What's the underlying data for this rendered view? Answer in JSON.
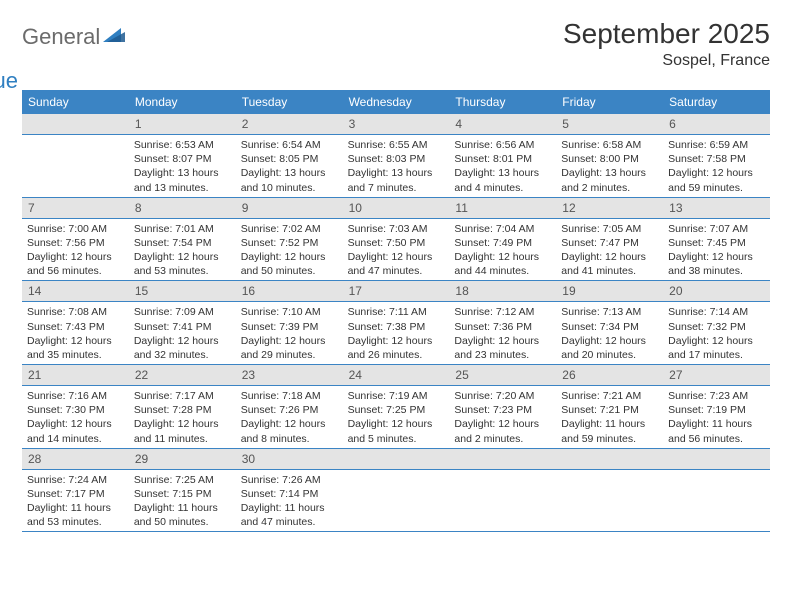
{
  "brand": {
    "part1": "General",
    "part2": "Blue",
    "icon_color": "#2f7fc1"
  },
  "title": "September 2025",
  "location": "Sospel, France",
  "colors": {
    "header_bg": "#3b84c4",
    "header_text": "#ffffff",
    "daynum_bg": "#e4e4e4",
    "text": "#333333",
    "border": "#3b84c4"
  },
  "weekdays": [
    "Sunday",
    "Monday",
    "Tuesday",
    "Wednesday",
    "Thursday",
    "Friday",
    "Saturday"
  ],
  "weeks": [
    [
      {
        "n": "",
        "sunrise": "",
        "sunset": "",
        "daylight": ""
      },
      {
        "n": "1",
        "sunrise": "Sunrise: 6:53 AM",
        "sunset": "Sunset: 8:07 PM",
        "daylight": "Daylight: 13 hours and 13 minutes."
      },
      {
        "n": "2",
        "sunrise": "Sunrise: 6:54 AM",
        "sunset": "Sunset: 8:05 PM",
        "daylight": "Daylight: 13 hours and 10 minutes."
      },
      {
        "n": "3",
        "sunrise": "Sunrise: 6:55 AM",
        "sunset": "Sunset: 8:03 PM",
        "daylight": "Daylight: 13 hours and 7 minutes."
      },
      {
        "n": "4",
        "sunrise": "Sunrise: 6:56 AM",
        "sunset": "Sunset: 8:01 PM",
        "daylight": "Daylight: 13 hours and 4 minutes."
      },
      {
        "n": "5",
        "sunrise": "Sunrise: 6:58 AM",
        "sunset": "Sunset: 8:00 PM",
        "daylight": "Daylight: 13 hours and 2 minutes."
      },
      {
        "n": "6",
        "sunrise": "Sunrise: 6:59 AM",
        "sunset": "Sunset: 7:58 PM",
        "daylight": "Daylight: 12 hours and 59 minutes."
      }
    ],
    [
      {
        "n": "7",
        "sunrise": "Sunrise: 7:00 AM",
        "sunset": "Sunset: 7:56 PM",
        "daylight": "Daylight: 12 hours and 56 minutes."
      },
      {
        "n": "8",
        "sunrise": "Sunrise: 7:01 AM",
        "sunset": "Sunset: 7:54 PM",
        "daylight": "Daylight: 12 hours and 53 minutes."
      },
      {
        "n": "9",
        "sunrise": "Sunrise: 7:02 AM",
        "sunset": "Sunset: 7:52 PM",
        "daylight": "Daylight: 12 hours and 50 minutes."
      },
      {
        "n": "10",
        "sunrise": "Sunrise: 7:03 AM",
        "sunset": "Sunset: 7:50 PM",
        "daylight": "Daylight: 12 hours and 47 minutes."
      },
      {
        "n": "11",
        "sunrise": "Sunrise: 7:04 AM",
        "sunset": "Sunset: 7:49 PM",
        "daylight": "Daylight: 12 hours and 44 minutes."
      },
      {
        "n": "12",
        "sunrise": "Sunrise: 7:05 AM",
        "sunset": "Sunset: 7:47 PM",
        "daylight": "Daylight: 12 hours and 41 minutes."
      },
      {
        "n": "13",
        "sunrise": "Sunrise: 7:07 AM",
        "sunset": "Sunset: 7:45 PM",
        "daylight": "Daylight: 12 hours and 38 minutes."
      }
    ],
    [
      {
        "n": "14",
        "sunrise": "Sunrise: 7:08 AM",
        "sunset": "Sunset: 7:43 PM",
        "daylight": "Daylight: 12 hours and 35 minutes."
      },
      {
        "n": "15",
        "sunrise": "Sunrise: 7:09 AM",
        "sunset": "Sunset: 7:41 PM",
        "daylight": "Daylight: 12 hours and 32 minutes."
      },
      {
        "n": "16",
        "sunrise": "Sunrise: 7:10 AM",
        "sunset": "Sunset: 7:39 PM",
        "daylight": "Daylight: 12 hours and 29 minutes."
      },
      {
        "n": "17",
        "sunrise": "Sunrise: 7:11 AM",
        "sunset": "Sunset: 7:38 PM",
        "daylight": "Daylight: 12 hours and 26 minutes."
      },
      {
        "n": "18",
        "sunrise": "Sunrise: 7:12 AM",
        "sunset": "Sunset: 7:36 PM",
        "daylight": "Daylight: 12 hours and 23 minutes."
      },
      {
        "n": "19",
        "sunrise": "Sunrise: 7:13 AM",
        "sunset": "Sunset: 7:34 PM",
        "daylight": "Daylight: 12 hours and 20 minutes."
      },
      {
        "n": "20",
        "sunrise": "Sunrise: 7:14 AM",
        "sunset": "Sunset: 7:32 PM",
        "daylight": "Daylight: 12 hours and 17 minutes."
      }
    ],
    [
      {
        "n": "21",
        "sunrise": "Sunrise: 7:16 AM",
        "sunset": "Sunset: 7:30 PM",
        "daylight": "Daylight: 12 hours and 14 minutes."
      },
      {
        "n": "22",
        "sunrise": "Sunrise: 7:17 AM",
        "sunset": "Sunset: 7:28 PM",
        "daylight": "Daylight: 12 hours and 11 minutes."
      },
      {
        "n": "23",
        "sunrise": "Sunrise: 7:18 AM",
        "sunset": "Sunset: 7:26 PM",
        "daylight": "Daylight: 12 hours and 8 minutes."
      },
      {
        "n": "24",
        "sunrise": "Sunrise: 7:19 AM",
        "sunset": "Sunset: 7:25 PM",
        "daylight": "Daylight: 12 hours and 5 minutes."
      },
      {
        "n": "25",
        "sunrise": "Sunrise: 7:20 AM",
        "sunset": "Sunset: 7:23 PM",
        "daylight": "Daylight: 12 hours and 2 minutes."
      },
      {
        "n": "26",
        "sunrise": "Sunrise: 7:21 AM",
        "sunset": "Sunset: 7:21 PM",
        "daylight": "Daylight: 11 hours and 59 minutes."
      },
      {
        "n": "27",
        "sunrise": "Sunrise: 7:23 AM",
        "sunset": "Sunset: 7:19 PM",
        "daylight": "Daylight: 11 hours and 56 minutes."
      }
    ],
    [
      {
        "n": "28",
        "sunrise": "Sunrise: 7:24 AM",
        "sunset": "Sunset: 7:17 PM",
        "daylight": "Daylight: 11 hours and 53 minutes."
      },
      {
        "n": "29",
        "sunrise": "Sunrise: 7:25 AM",
        "sunset": "Sunset: 7:15 PM",
        "daylight": "Daylight: 11 hours and 50 minutes."
      },
      {
        "n": "30",
        "sunrise": "Sunrise: 7:26 AM",
        "sunset": "Sunset: 7:14 PM",
        "daylight": "Daylight: 11 hours and 47 minutes."
      },
      {
        "n": "",
        "sunrise": "",
        "sunset": "",
        "daylight": ""
      },
      {
        "n": "",
        "sunrise": "",
        "sunset": "",
        "daylight": ""
      },
      {
        "n": "",
        "sunrise": "",
        "sunset": "",
        "daylight": ""
      },
      {
        "n": "",
        "sunrise": "",
        "sunset": "",
        "daylight": ""
      }
    ]
  ]
}
